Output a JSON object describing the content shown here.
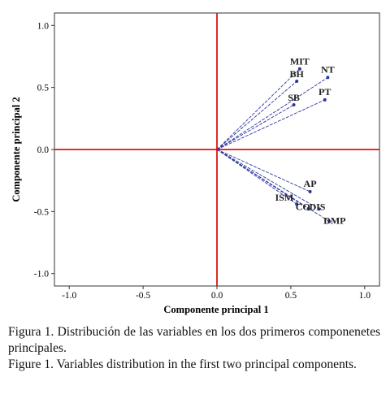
{
  "chart_data": {
    "type": "scatter",
    "title": "",
    "xlabel": "Componente principal 1",
    "ylabel": "Componente principal 2",
    "xlim": [
      -1.1,
      1.1
    ],
    "ylim": [
      -1.1,
      1.1
    ],
    "xticks": [
      {
        "value": -1.0,
        "label": "-1.0"
      },
      {
        "value": -0.5,
        "label": "-0.5"
      },
      {
        "value": 0.0,
        "label": "0.0"
      },
      {
        "value": 0.5,
        "label": "0.5"
      },
      {
        "value": 1.0,
        "label": "1.0"
      }
    ],
    "yticks": [
      {
        "value": 1.0,
        "label": "1.0"
      },
      {
        "value": 0.5,
        "label": "0.5"
      },
      {
        "value": 0.0,
        "label": "0.0"
      },
      {
        "value": -0.5,
        "label": "-0.5"
      },
      {
        "value": -1.0,
        "label": "-1.0"
      }
    ],
    "grid": false,
    "reference_lines": {
      "x": 0,
      "y": 0,
      "color": "#dd1111"
    },
    "vector_color": "#2b35a0",
    "points": [
      {
        "label": "MIT",
        "x": 0.56,
        "y": 0.65
      },
      {
        "label": "BH",
        "x": 0.54,
        "y": 0.55
      },
      {
        "label": "NT",
        "x": 0.75,
        "y": 0.58
      },
      {
        "label": "PT",
        "x": 0.73,
        "y": 0.4
      },
      {
        "label": "SB",
        "x": 0.52,
        "y": 0.36
      },
      {
        "label": "AP",
        "x": 0.63,
        "y": -0.34
      },
      {
        "label": "ISM",
        "x": 0.54,
        "y": -0.44
      },
      {
        "label": "CO",
        "x": 0.62,
        "y": -0.48
      },
      {
        "label": "DIS",
        "x": 0.69,
        "y": -0.48
      },
      {
        "label": "DMP",
        "x": 0.76,
        "y": -0.58
      }
    ]
  },
  "caption": {
    "spanish": "Figura 1. Distribución de las variables en los dos primeros componenetes principales.",
    "english": "Figure 1. Variables distribution in the first two principal components."
  }
}
